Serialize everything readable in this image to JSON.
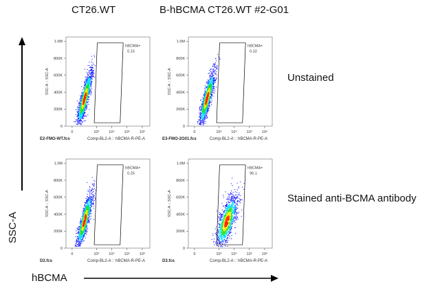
{
  "columns": [
    "CT26.WT",
    "B-hBCMA CT26.WT #2-G01"
  ],
  "rows": [
    "Unstained",
    "Stained anti-BCMA antibody"
  ],
  "axes": {
    "y_label": "SSC-A",
    "x_label": "hBCMA"
  },
  "colors": {
    "low": "#1a1aff",
    "mid": "#00e0ff",
    "mid2": "#20e020",
    "high": "#ffee00",
    "peak": "#ff2000"
  },
  "chart_data": [
    {
      "type": "scatter",
      "panel": "CT26.WT / Unstained",
      "file": "E2-FMO-WT.fcs",
      "xlabel": "Comp-BL2-A :: hBCMA-R-PE-A",
      "ylabel": "SSC-A :: SSC-A",
      "x_ticks": [
        "0",
        "10³",
        "10⁴",
        "10⁵",
        "10⁶"
      ],
      "y_ticks": [
        "0",
        "200K",
        "400K",
        "600K",
        "800K",
        "1.0M"
      ],
      "gate": {
        "name": "hBCMA+",
        "percent": "0.15"
      },
      "population": {
        "center_log_x": 2.2,
        "center_y_k": 330,
        "positive_fraction": 0.0015
      }
    },
    {
      "type": "scatter",
      "panel": "B-hBCMA CT26.WT #2-G01 / Unstained",
      "file": "E3-FMO-2G01.fcs",
      "xlabel": "Comp-BL2-A :: hBCMA-R-PE-A",
      "ylabel": "SSC-A :: SSC-A",
      "x_ticks": [
        "0",
        "10³",
        "10⁴",
        "10⁵",
        "10⁶"
      ],
      "y_ticks": [
        "0",
        "200K",
        "400K",
        "600K",
        "800K",
        "1.0M"
      ],
      "gate": {
        "name": "hBCMA+",
        "percent": "0.32"
      },
      "population": {
        "center_log_x": 2.2,
        "center_y_k": 330,
        "positive_fraction": 0.0032
      }
    },
    {
      "type": "scatter",
      "panel": "CT26.WT / Stained anti-BCMA antibody",
      "file": "D2.fcs",
      "xlabel": "Comp-BL2-A :: hBCMA-R-PE-A",
      "ylabel": "SSC-A :: SSC-A",
      "x_ticks": [
        "0",
        "10³",
        "10⁴",
        "10⁵",
        "10⁶"
      ],
      "y_ticks": [
        "0",
        "200K",
        "400K",
        "600K",
        "800K",
        "1.0M"
      ],
      "gate": {
        "name": "hBCMA+",
        "percent": "0.25"
      },
      "population": {
        "center_log_x": 2.2,
        "center_y_k": 330,
        "positive_fraction": 0.0025
      }
    },
    {
      "type": "scatter",
      "panel": "B-hBCMA CT26.WT #2-G01 / Stained anti-BCMA antibody",
      "file": "D3.fcs",
      "xlabel": "Comp-BL2-A :: hBCMA-R-PE-A",
      "ylabel": "SSC-A :: SSC-A",
      "x_ticks": [
        "0",
        "10³",
        "10⁴",
        "10⁵",
        "10⁶"
      ],
      "y_ticks": [
        "0",
        "200K",
        "400K",
        "600K",
        "800K",
        "1.0M"
      ],
      "gate": {
        "name": "hBCMA+",
        "percent": "96.1"
      },
      "population": {
        "center_log_x": 3.5,
        "center_y_k": 320,
        "positive_fraction": 0.961
      }
    }
  ]
}
